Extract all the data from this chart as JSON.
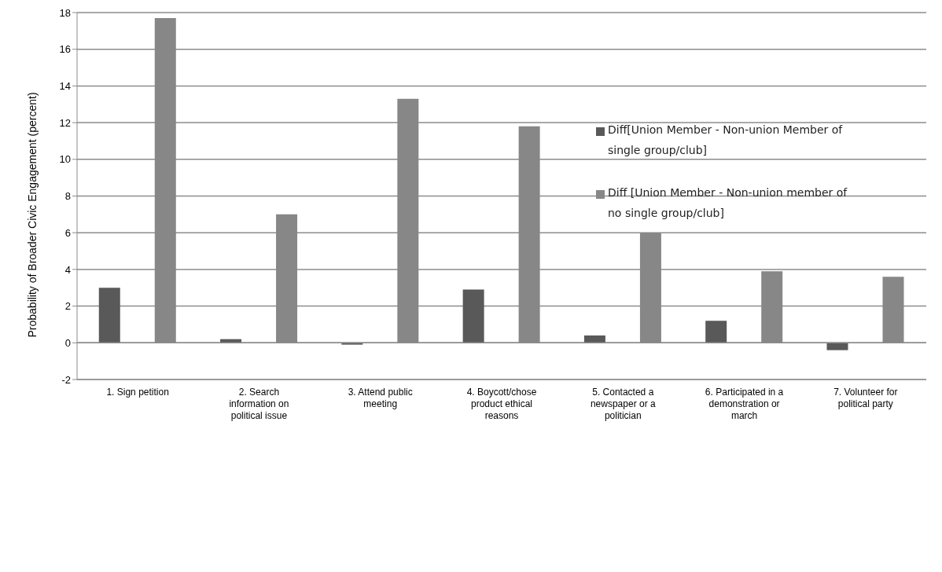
{
  "chart_data": {
    "type": "bar",
    "ylabel": "Probability of Broader Civic Engagement (percent)",
    "categories": [
      "1. Sign petition",
      "2. Search information on political issue",
      "3. Attend public meeting",
      "4. Boycott/chose product ethical reasons",
      "5. Contacted a newspaper or a politician",
      "6. Participated in a demonstration or march",
      "7. Volunteer for political party"
    ],
    "series": [
      {
        "name": "Diff[Union Member - Non-union Member of single group/club]",
        "color": "#595959",
        "values": [
          3.0,
          0.2,
          -0.1,
          2.9,
          0.4,
          1.2,
          -0.4
        ]
      },
      {
        "name": "Diff [Union Member - Non-union member of no single group/club]",
        "color": "#878787",
        "values": [
          17.7,
          7.0,
          13.3,
          11.8,
          6.0,
          3.9,
          3.6
        ]
      }
    ],
    "ylim": [
      -2,
      18
    ],
    "yticks": [
      -2,
      0,
      2,
      4,
      6,
      8,
      10,
      12,
      14,
      16,
      18
    ],
    "grid": "y",
    "legend": "top right"
  }
}
